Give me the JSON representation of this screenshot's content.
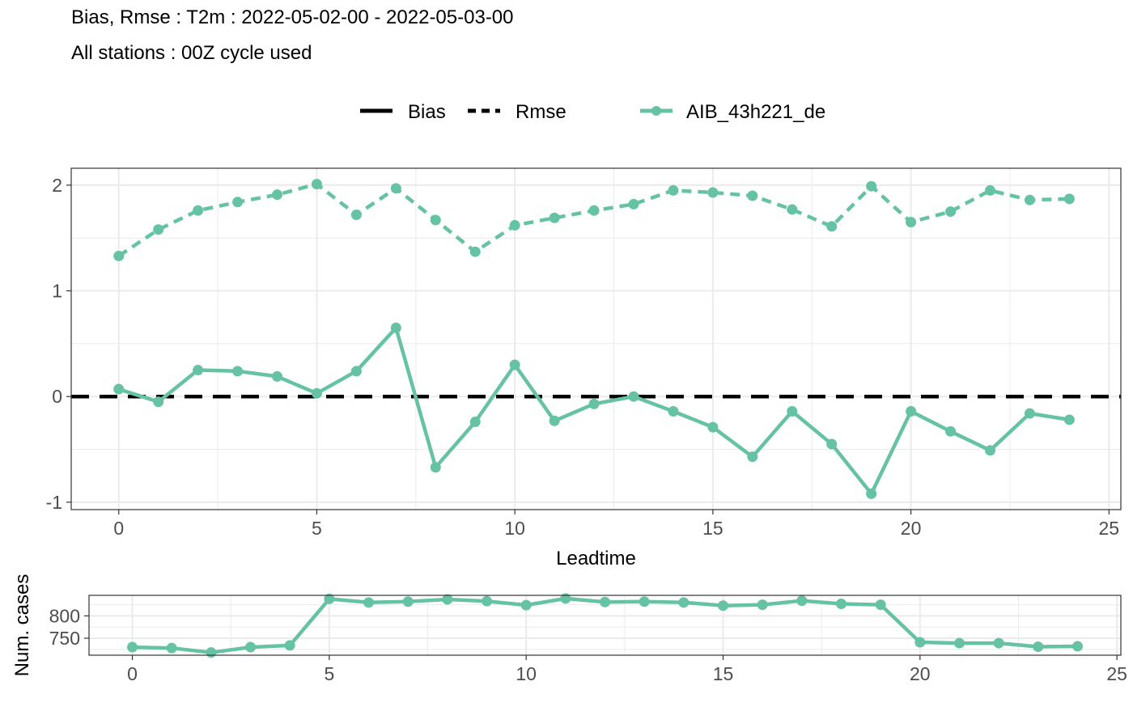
{
  "title": "Bias, Rmse : T2m : 2022-05-02-00 - 2022-05-03-00",
  "subtitle": "All stations : 00Z cycle used",
  "colors": {
    "series": "#66c2a5",
    "reference": "#000000",
    "grid": "#ebebeb",
    "panel_border": "#333333"
  },
  "legend": {
    "linetype_entries": [
      "Bias",
      "Rmse"
    ],
    "series_entry": "AIB_43h221_de",
    "placement": "top"
  },
  "chart_data": [
    {
      "type": "line",
      "xlabel": "Leadtime",
      "ylabel": "",
      "xlim": [
        -1.2,
        25.3
      ],
      "ylim": [
        -1.07,
        2.16
      ],
      "x_ticks": [
        0,
        5,
        10,
        15,
        20,
        25
      ],
      "y_ticks": [
        -1,
        0,
        1,
        2
      ],
      "grid": true,
      "x": [
        0,
        1,
        2,
        3,
        4,
        5,
        6,
        7,
        8,
        9,
        10,
        11,
        12,
        13,
        14,
        15,
        16,
        17,
        18,
        19,
        20,
        21,
        22,
        23,
        24
      ],
      "reference_line": {
        "label": "Bias",
        "y": 0,
        "style": "dashed"
      },
      "series": [
        {
          "name": "AIB_43h221_de",
          "stat": "Rmse",
          "style": "dashed",
          "values": [
            1.33,
            1.58,
            1.76,
            1.84,
            1.91,
            2.01,
            1.72,
            1.97,
            1.67,
            1.37,
            1.62,
            1.69,
            1.76,
            1.82,
            1.95,
            1.93,
            1.9,
            1.77,
            1.61,
            1.99,
            1.65,
            1.75,
            1.95,
            1.86,
            1.87
          ]
        },
        {
          "name": "AIB_43h221_de",
          "stat": "Bias",
          "style": "solid",
          "values": [
            0.07,
            -0.05,
            0.25,
            0.24,
            0.19,
            0.03,
            0.24,
            0.65,
            -0.67,
            -0.24,
            0.3,
            -0.23,
            -0.07,
            0.0,
            -0.14,
            -0.29,
            -0.57,
            -0.14,
            -0.45,
            -0.92,
            -0.14,
            -0.33,
            -0.51,
            -0.16,
            -0.22
          ]
        }
      ]
    },
    {
      "type": "line",
      "xlabel": "",
      "ylabel": "Num. cases",
      "xlim": [
        -1.1,
        25.1
      ],
      "ylim": [
        712,
        846
      ],
      "x_ticks": [
        0,
        5,
        10,
        15,
        20,
        25
      ],
      "y_ticks": [
        750,
        800
      ],
      "grid": true,
      "x": [
        0,
        1,
        2,
        3,
        4,
        5,
        6,
        7,
        8,
        9,
        10,
        11,
        12,
        13,
        14,
        15,
        16,
        17,
        18,
        19,
        20,
        21,
        22,
        23,
        24
      ],
      "series": [
        {
          "name": "AIB_43h221_de",
          "values": [
            730,
            728,
            718,
            730,
            734,
            838,
            830,
            832,
            837,
            833,
            824,
            839,
            831,
            832,
            830,
            823,
            825,
            834,
            827,
            825,
            741,
            739,
            739,
            731,
            732
          ]
        }
      ]
    }
  ]
}
